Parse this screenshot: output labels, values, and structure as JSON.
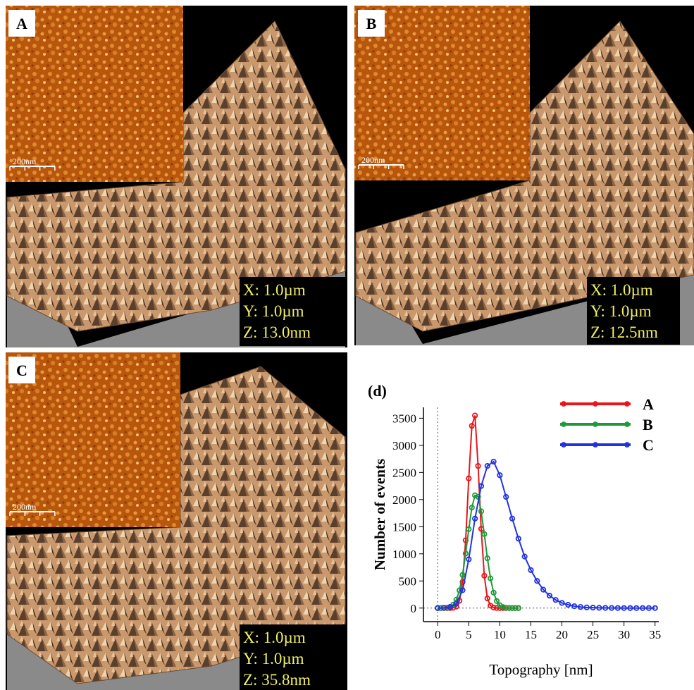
{
  "panels": [
    {
      "label": "A",
      "scale_bar": "200nm",
      "dims": [
        "X: 1.0µm",
        "Y: 1.0µm",
        "Z: 13.0nm"
      ]
    },
    {
      "label": "B",
      "scale_bar": "200nm",
      "dims": [
        "X: 1.0µm",
        "Y: 1.0µm",
        "Z: 12.5nm"
      ]
    },
    {
      "label": "C",
      "scale_bar": "200nm",
      "dims": [
        "X: 1.0µm",
        "Y: 1.0µm",
        "Z: 35.8nm"
      ]
    }
  ],
  "chart_data": {
    "type": "line",
    "panel_label": "(d)",
    "xlabel": "Topography [nm]",
    "ylabel": "Number of events",
    "xlim": [
      -2.3,
      35.6
    ],
    "ylim": [
      -250,
      3700
    ],
    "xticks": [
      0,
      5,
      10,
      15,
      20,
      25,
      30,
      35
    ],
    "yticks": [
      0,
      500,
      1000,
      1500,
      2000,
      2500,
      3000,
      3500
    ],
    "grid": false,
    "legend": "upper right",
    "series": [
      {
        "name": "A",
        "color": "#e8151b",
        "x": [
          0,
          0.5,
          1,
          1.5,
          2,
          2.5,
          3,
          3.5,
          4,
          4.5,
          5,
          5.5,
          6,
          6.5,
          7,
          7.5,
          8,
          8.5,
          9,
          9.5,
          10,
          10.5,
          11,
          11.5,
          12,
          12.5,
          13
        ],
        "values": [
          0,
          0,
          0,
          0,
          0,
          5,
          28,
          135,
          480,
          1250,
          2390,
          3360,
          3550,
          2620,
          1460,
          596,
          178,
          45,
          10,
          2,
          0,
          0,
          0,
          0,
          0,
          0,
          0
        ]
      },
      {
        "name": "B",
        "color": "#1f9a3b",
        "x": [
          0,
          0.5,
          1,
          1.5,
          2,
          2.5,
          3,
          3.5,
          4,
          4.5,
          5,
          5.5,
          6,
          6.5,
          7,
          7.5,
          8,
          8.5,
          9,
          9.5,
          10,
          10.5,
          11,
          11.5,
          12,
          12.5,
          13
        ],
        "values": [
          0,
          0,
          2,
          7,
          23,
          64,
          154,
          327,
          611,
          1005,
          1455,
          1853,
          2079,
          2052,
          1783,
          1365,
          918,
          547,
          284,
          130,
          53,
          19,
          6,
          2,
          0,
          0,
          0
        ]
      },
      {
        "name": "C",
        "color": "#2233dd",
        "x": [
          0,
          1,
          2,
          3,
          4,
          5,
          6,
          7,
          8,
          9,
          10,
          11,
          12,
          13,
          14,
          15,
          16,
          17,
          18,
          19,
          20,
          21,
          22,
          23,
          24,
          25,
          26,
          27,
          28,
          29,
          30,
          31,
          32,
          33,
          34,
          35
        ],
        "values": [
          0,
          5,
          20,
          80,
          330,
          900,
          1650,
          2250,
          2620,
          2700,
          2450,
          2050,
          1650,
          1280,
          950,
          700,
          500,
          340,
          230,
          150,
          95,
          60,
          35,
          20,
          12,
          8,
          5,
          3,
          2,
          1,
          0,
          0,
          0,
          0,
          0,
          0
        ]
      }
    ]
  }
}
